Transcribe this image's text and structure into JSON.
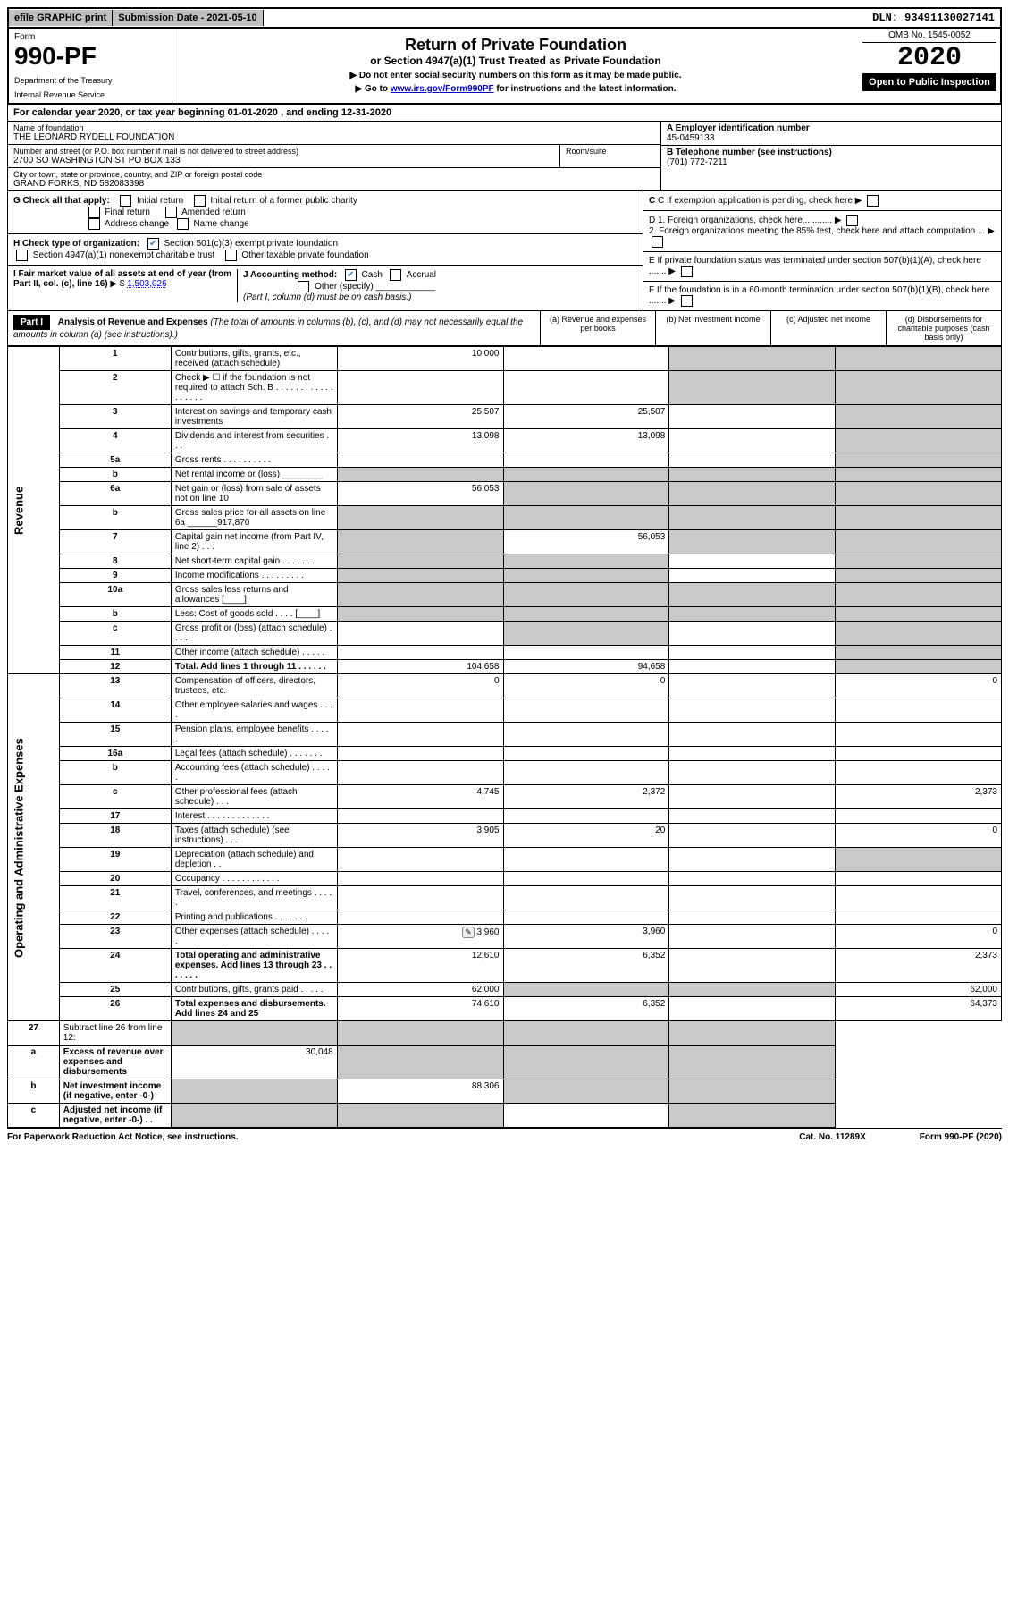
{
  "topbar": {
    "efile": "efile GRAPHIC print",
    "submission": "Submission Date - 2021-05-10",
    "dln": "DLN: 93491130027141"
  },
  "header": {
    "form_label": "Form",
    "form_num_big": "990-PF",
    "dept": "Department of the Treasury",
    "irs": "Internal Revenue Service",
    "title": "Return of Private Foundation",
    "subtitle": "or Section 4947(a)(1) Trust Treated as Private Foundation",
    "note1": "▶ Do not enter social security numbers on this form as it may be made public.",
    "note2_pre": "▶ Go to ",
    "note2_link": "www.irs.gov/Form990PF",
    "note2_post": " for instructions and the latest information.",
    "omb": "OMB No. 1545-0052",
    "year": "2020",
    "open": "Open to Public Inspection"
  },
  "calyear": {
    "prefix": "For calendar year 2020, or tax year beginning ",
    "begin": "01-01-2020",
    "mid": " , and ending ",
    "end": "12-31-2020"
  },
  "entity": {
    "name_label": "Name of foundation",
    "name": "THE LEONARD RYDELL FOUNDATION",
    "addr_label": "Number and street (or P.O. box number if mail is not delivered to street address)",
    "addr": "2700 SO WASHINGTON ST PO BOX 133",
    "room_label": "Room/suite",
    "city_label": "City or town, state or province, country, and ZIP or foreign postal code",
    "city": "GRAND FORKS, ND  582083398",
    "ein_label": "A Employer identification number",
    "ein": "45-0459133",
    "phone_label": "B Telephone number (see instructions)",
    "phone": "(701) 772-7211",
    "c_label": "C If exemption application is pending, check here",
    "d1": "D 1. Foreign organizations, check here............",
    "d2": "2. Foreign organizations meeting the 85% test, check here and attach computation ...",
    "e_label": "E  If private foundation status was terminated under section 507(b)(1)(A), check here .......",
    "f_label": "F  If the foundation is in a 60-month termination under section 507(b)(1)(B), check here ......."
  },
  "checks": {
    "g_label": "G Check all that apply:",
    "initial": "Initial return",
    "initial_former": "Initial return of a former public charity",
    "final": "Final return",
    "amended": "Amended return",
    "address": "Address change",
    "name_change": "Name change",
    "h_label": "H Check type of organization:",
    "h_501c3": "Section 501(c)(3) exempt private foundation",
    "h_4947": "Section 4947(a)(1) nonexempt charitable trust",
    "h_other": "Other taxable private foundation",
    "i_label": "I Fair market value of all assets at end of year (from Part II, col. (c), line 16)",
    "i_value": "1,503,026",
    "j_label": "J Accounting method:",
    "j_cash": "Cash",
    "j_accrual": "Accrual",
    "j_other": "Other (specify)",
    "j_note": "(Part I, column (d) must be on cash basis.)"
  },
  "part1": {
    "label": "Part I",
    "title": "Analysis of Revenue and Expenses",
    "title_note": " (The total of amounts in columns (b), (c), and (d) may not necessarily equal the amounts in column (a) (see instructions).)",
    "col_a": "(a) Revenue and expenses per books",
    "col_b": "(b) Net investment income",
    "col_c": "(c) Adjusted net income",
    "col_d": "(d) Disbursements for charitable purposes (cash basis only)"
  },
  "sides": {
    "revenue": "Revenue",
    "expenses": "Operating and Administrative Expenses"
  },
  "rows": [
    {
      "n": "1",
      "d": "Contributions, gifts, grants, etc., received (attach schedule)",
      "a": "10,000",
      "b": "",
      "c_sh": true,
      "d_sh": true
    },
    {
      "n": "2",
      "d": "Check ▶ ☐ if the foundation is not required to attach Sch. B  . . . . . . . . . . . . . . . . . .",
      "a": "",
      "b": "",
      "c_sh": true,
      "d_sh": true
    },
    {
      "n": "3",
      "d": "Interest on savings and temporary cash investments",
      "a": "25,507",
      "b": "25,507",
      "c": "",
      "d_sh": true
    },
    {
      "n": "4",
      "d": "Dividends and interest from securities  .  .  .",
      "a": "13,098",
      "b": "13,098",
      "c": "",
      "d_sh": true
    },
    {
      "n": "5a",
      "d": "Gross rents  .  .  .  .  .  .  .  .  .  .",
      "a": "",
      "b": "",
      "c": "",
      "d_sh": true
    },
    {
      "n": "b",
      "d": "Net rental income or (loss) ________",
      "a_sh": true,
      "b_sh": true,
      "c_sh": true,
      "d_sh": true
    },
    {
      "n": "6a",
      "d": "Net gain or (loss) from sale of assets not on line 10",
      "a": "56,053",
      "b_sh": true,
      "c_sh": true,
      "d_sh": true
    },
    {
      "n": "b",
      "d": "Gross sales price for all assets on line 6a ______917,870",
      "a_sh": true,
      "b_sh": true,
      "c_sh": true,
      "d_sh": true
    },
    {
      "n": "7",
      "d": "Capital gain net income (from Part IV, line 2)  .  .  .",
      "a_sh": true,
      "b": "56,053",
      "c_sh": true,
      "d_sh": true
    },
    {
      "n": "8",
      "d": "Net short-term capital gain  .  .  .  .  .  .  .",
      "a_sh": true,
      "b_sh": true,
      "c": "",
      "d_sh": true
    },
    {
      "n": "9",
      "d": "Income modifications  .  .  .  .  .  .  .  .  .",
      "a_sh": true,
      "b_sh": true,
      "c": "",
      "d_sh": true
    },
    {
      "n": "10a",
      "d": "Gross sales less returns and allowances  [____]",
      "a_sh": true,
      "b_sh": true,
      "c_sh": true,
      "d_sh": true
    },
    {
      "n": "b",
      "d": "Less: Cost of goods sold  .  .  .  .  [____]",
      "a_sh": true,
      "b_sh": true,
      "c_sh": true,
      "d_sh": true
    },
    {
      "n": "c",
      "d": "Gross profit or (loss) (attach schedule)  .  .  .  .",
      "a": "",
      "b_sh": true,
      "c": "",
      "d_sh": true
    },
    {
      "n": "11",
      "d": "Other income (attach schedule)  .  .  .  .  .",
      "a": "",
      "b": "",
      "c": "",
      "d_sh": true
    },
    {
      "n": "12",
      "d_bold": true,
      "d": "Total. Add lines 1 through 11  .  .  .  .  .  .",
      "a": "104,658",
      "b": "94,658",
      "c": "",
      "d_sh": true
    }
  ],
  "exp_rows": [
    {
      "n": "13",
      "d": "Compensation of officers, directors, trustees, etc.",
      "a": "0",
      "b": "0",
      "c": "",
      "dd": "0"
    },
    {
      "n": "14",
      "d": "Other employee salaries and wages  .  .  .  .",
      "a": "",
      "b": "",
      "c": "",
      "dd": ""
    },
    {
      "n": "15",
      "d": "Pension plans, employee benefits  .  .  .  .  .",
      "a": "",
      "b": "",
      "c": "",
      "dd": ""
    },
    {
      "n": "16a",
      "d": "Legal fees (attach schedule)  .  .  .  .  .  .  .",
      "a": "",
      "b": "",
      "c": "",
      "dd": ""
    },
    {
      "n": "b",
      "d": "Accounting fees (attach schedule)  .  .  .  .  .",
      "a": "",
      "b": "",
      "c": "",
      "dd": ""
    },
    {
      "n": "c",
      "d": "Other professional fees (attach schedule)  .  .  .",
      "a": "4,745",
      "b": "2,372",
      "c": "",
      "dd": "2,373"
    },
    {
      "n": "17",
      "d": "Interest  .  .  .  .  .  .  .  .  .  .  .  .  .",
      "a": "",
      "b": "",
      "c": "",
      "dd": ""
    },
    {
      "n": "18",
      "d": "Taxes (attach schedule) (see instructions)  .  .  .",
      "a": "3,905",
      "b": "20",
      "c": "",
      "dd": "0"
    },
    {
      "n": "19",
      "d": "Depreciation (attach schedule) and depletion  .  .",
      "a": "",
      "b": "",
      "c": "",
      "dd_sh": true
    },
    {
      "n": "20",
      "d": "Occupancy  .  .  .  .  .  .  .  .  .  .  .  .",
      "a": "",
      "b": "",
      "c": "",
      "dd": ""
    },
    {
      "n": "21",
      "d": "Travel, conferences, and meetings  .  .  .  .  .",
      "a": "",
      "b": "",
      "c": "",
      "dd": ""
    },
    {
      "n": "22",
      "d": "Printing and publications  .  .  .  .  .  .  .",
      "a": "",
      "b": "",
      "c": "",
      "dd": ""
    },
    {
      "n": "23",
      "d": "Other expenses (attach schedule)  .  .  .  .  .",
      "icon": true,
      "a": "3,960",
      "b": "3,960",
      "c": "",
      "dd": "0"
    },
    {
      "n": "24",
      "d_bold": true,
      "d": "Total operating and administrative expenses. Add lines 13 through 23  .  .  .  .  .  .  .",
      "a": "12,610",
      "b": "6,352",
      "c": "",
      "dd": "2,373"
    },
    {
      "n": "25",
      "d": "Contributions, gifts, grants paid  .  .  .  .  .",
      "a": "62,000",
      "b_sh": true,
      "c_sh": true,
      "dd": "62,000"
    },
    {
      "n": "26",
      "d_bold": true,
      "d": "Total expenses and disbursements. Add lines 24 and 25",
      "a": "74,610",
      "b": "6,352",
      "c": "",
      "dd": "64,373"
    }
  ],
  "net_rows": [
    {
      "n": "27",
      "d": "Subtract line 26 from line 12:",
      "a_sh": true,
      "b_sh": true,
      "c_sh": true,
      "dd_sh": true
    },
    {
      "n": "a",
      "d_bold": true,
      "d": "Excess of revenue over expenses and disbursements",
      "a": "30,048",
      "b_sh": true,
      "c_sh": true,
      "dd_sh": true
    },
    {
      "n": "b",
      "d_bold": true,
      "d": "Net investment income (if negative, enter -0-)",
      "a_sh": true,
      "b": "88,306",
      "c_sh": true,
      "dd_sh": true
    },
    {
      "n": "c",
      "d_bold": true,
      "d": "Adjusted net income (if negative, enter -0-)  .  .",
      "a_sh": true,
      "b_sh": true,
      "c": "",
      "dd_sh": true
    }
  ],
  "footer": {
    "left": "For Paperwork Reduction Act Notice, see instructions.",
    "mid": "Cat. No. 11289X",
    "right": "Form 990-PF (2020)"
  }
}
